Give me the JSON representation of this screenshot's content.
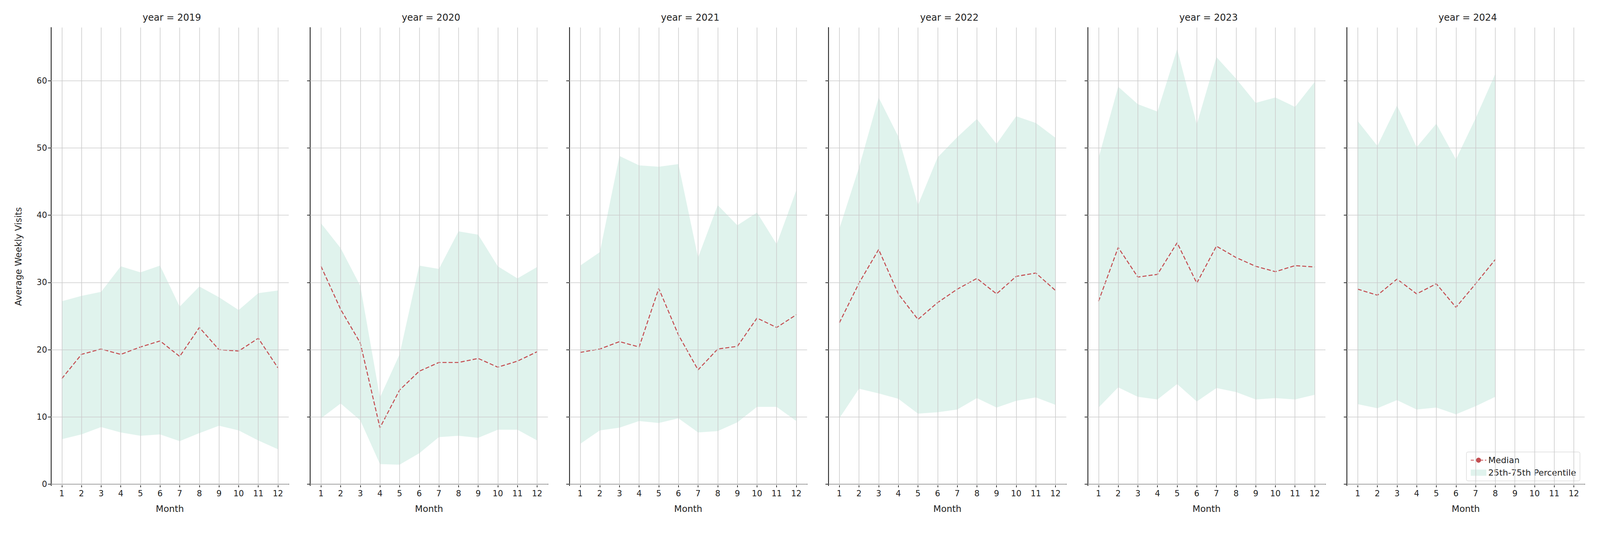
{
  "chart_data": [
    {
      "type": "line",
      "title": "year = 2019",
      "xlabel": "Month",
      "ylabel": "Average Weekly Visits",
      "x": [
        1,
        2,
        3,
        4,
        5,
        6,
        7,
        8,
        9,
        10,
        11,
        12
      ],
      "xlim": [
        0.45,
        12.55
      ],
      "xticks": [
        1,
        2,
        3,
        4,
        5,
        6,
        7,
        8,
        9,
        10,
        11,
        12
      ],
      "ylim": [
        -0.2,
        67.9
      ],
      "yticks": [
        0,
        10,
        20,
        30,
        40,
        50,
        60
      ],
      "grid": true,
      "series": [
        {
          "name": "Median",
          "color": "#c44e52",
          "line_style": "dashed",
          "values": [
            15.7,
            19.3,
            20.1,
            19.3,
            20.4,
            21.3,
            19.0,
            23.3,
            20.0,
            19.8,
            21.7,
            17.3
          ]
        },
        {
          "name": "25th-75th Percentile",
          "type": "band",
          "color": "#66c2a5",
          "lower": [
            6.7,
            7.4,
            8.5,
            7.7,
            7.2,
            7.4,
            6.4,
            7.6,
            8.7,
            8.0,
            6.5,
            5.2
          ],
          "upper": [
            27.2,
            28.0,
            28.6,
            32.4,
            31.5,
            32.5,
            26.4,
            29.4,
            27.8,
            25.9,
            28.4,
            28.8
          ]
        }
      ]
    },
    {
      "type": "line",
      "title": "year = 2020",
      "xlabel": "Month",
      "tick_labels": "x",
      "x": [
        1,
        2,
        3,
        4,
        5,
        6,
        7,
        8,
        9,
        10,
        11,
        12
      ],
      "xlim": [
        0.45,
        12.55
      ],
      "xticks": [
        1,
        2,
        3,
        4,
        5,
        6,
        7,
        8,
        9,
        10,
        11,
        12
      ],
      "ylim": [
        -0.2,
        67.9
      ],
      "yticks": [
        0,
        10,
        20,
        30,
        40,
        50,
        60
      ],
      "grid": true,
      "series": [
        {
          "name": "Median",
          "color": "#c44e52",
          "line_style": "dashed",
          "values": [
            32.4,
            26.0,
            21.0,
            8.4,
            14.0,
            16.8,
            18.1,
            18.1,
            18.7,
            17.4,
            18.3,
            19.7
          ]
        },
        {
          "name": "25th-75th Percentile",
          "type": "band",
          "color": "#66c2a5",
          "lower": [
            9.8,
            12.0,
            9.5,
            3.0,
            2.9,
            4.6,
            7.0,
            7.2,
            6.9,
            8.1,
            8.1,
            6.5
          ],
          "upper": [
            38.8,
            35.1,
            29.5,
            12.9,
            19.3,
            32.5,
            32.0,
            37.6,
            37.1,
            32.4,
            30.6,
            32.3
          ]
        }
      ]
    },
    {
      "type": "line",
      "title": "year = 2021",
      "xlabel": "Month",
      "tick_labels": "x",
      "x": [
        1,
        2,
        3,
        4,
        5,
        6,
        7,
        8,
        9,
        10,
        11,
        12
      ],
      "xlim": [
        0.45,
        12.55
      ],
      "xticks": [
        1,
        2,
        3,
        4,
        5,
        6,
        7,
        8,
        9,
        10,
        11,
        12
      ],
      "ylim": [
        -0.2,
        67.9
      ],
      "yticks": [
        0,
        10,
        20,
        30,
        40,
        50,
        60
      ],
      "grid": true,
      "series": [
        {
          "name": "Median",
          "color": "#c44e52",
          "line_style": "dashed",
          "values": [
            19.6,
            20.1,
            21.2,
            20.4,
            29.1,
            22.2,
            17.0,
            20.1,
            20.5,
            24.7,
            23.3,
            25.2
          ]
        },
        {
          "name": "25th-75th Percentile",
          "type": "band",
          "color": "#66c2a5",
          "lower": [
            6.0,
            8.0,
            8.4,
            9.4,
            9.1,
            9.8,
            7.7,
            7.9,
            9.2,
            11.5,
            11.5,
            9.4
          ],
          "upper": [
            32.5,
            34.5,
            48.8,
            47.4,
            47.2,
            47.6,
            33.7,
            41.5,
            38.5,
            40.4,
            35.7,
            43.7
          ]
        }
      ]
    },
    {
      "type": "line",
      "title": "year = 2022",
      "xlabel": "Month",
      "tick_labels": "x",
      "x": [
        1,
        2,
        3,
        4,
        5,
        6,
        7,
        8,
        9,
        10,
        11,
        12
      ],
      "xlim": [
        0.45,
        12.55
      ],
      "xticks": [
        1,
        2,
        3,
        4,
        5,
        6,
        7,
        8,
        9,
        10,
        11,
        12
      ],
      "ylim": [
        -0.2,
        67.9
      ],
      "yticks": [
        0,
        10,
        20,
        30,
        40,
        50,
        60
      ],
      "grid": true,
      "series": [
        {
          "name": "Median",
          "color": "#c44e52",
          "line_style": "dashed",
          "values": [
            24.0,
            29.9,
            34.9,
            28.3,
            24.5,
            27.0,
            29.0,
            30.6,
            28.3,
            30.9,
            31.4,
            28.8
          ]
        },
        {
          "name": "25th-75th Percentile",
          "type": "band",
          "color": "#66c2a5",
          "lower": [
            9.8,
            14.2,
            13.5,
            12.7,
            10.5,
            10.7,
            11.1,
            12.8,
            11.4,
            12.4,
            12.9,
            11.8
          ],
          "upper": [
            38.0,
            47.1,
            57.5,
            51.7,
            41.5,
            48.6,
            51.6,
            54.3,
            50.6,
            54.7,
            53.7,
            51.5
          ]
        }
      ]
    },
    {
      "type": "line",
      "title": "year = 2023",
      "xlabel": "Month",
      "tick_labels": "x",
      "x": [
        1,
        2,
        3,
        4,
        5,
        6,
        7,
        8,
        9,
        10,
        11,
        12
      ],
      "xlim": [
        0.45,
        12.55
      ],
      "xticks": [
        1,
        2,
        3,
        4,
        5,
        6,
        7,
        8,
        9,
        10,
        11,
        12
      ],
      "ylim": [
        -0.2,
        67.9
      ],
      "yticks": [
        0,
        10,
        20,
        30,
        40,
        50,
        60
      ],
      "grid": true,
      "series": [
        {
          "name": "Median",
          "color": "#c44e52",
          "line_style": "dashed",
          "values": [
            27.2,
            35.2,
            30.8,
            31.2,
            35.9,
            29.9,
            35.4,
            33.7,
            32.4,
            31.6,
            32.5,
            32.3
          ]
        },
        {
          "name": "25th-75th Percentile",
          "type": "band",
          "color": "#66c2a5",
          "lower": [
            11.4,
            14.4,
            13.0,
            12.6,
            14.9,
            12.3,
            14.3,
            13.7,
            12.6,
            12.8,
            12.6,
            13.3
          ],
          "upper": [
            48.5,
            59.1,
            56.5,
            55.4,
            64.7,
            53.5,
            63.5,
            60.3,
            56.7,
            57.5,
            56.1,
            59.8
          ]
        }
      ]
    },
    {
      "type": "line",
      "title": "year = 2024",
      "xlabel": "Month",
      "tick_labels": "x",
      "legend": "lower right",
      "x": [
        1,
        2,
        3,
        4,
        5,
        6,
        7,
        8,
        9,
        10,
        11,
        12
      ],
      "xlim": [
        0.45,
        12.55
      ],
      "xticks": [
        1,
        2,
        3,
        4,
        5,
        6,
        7,
        8,
        9,
        10,
        11,
        12
      ],
      "ylim": [
        -0.2,
        67.9
      ],
      "yticks": [
        0,
        10,
        20,
        30,
        40,
        50,
        60
      ],
      "grid": true,
      "series": [
        {
          "name": "Median",
          "color": "#c44e52",
          "line_style": "dashed",
          "values": [
            29.0,
            28.1,
            30.5,
            28.3,
            29.8,
            26.3,
            29.8,
            33.4,
            null,
            null,
            null,
            null
          ]
        },
        {
          "name": "25th-75th Percentile",
          "type": "band",
          "color": "#66c2a5",
          "lower": [
            11.9,
            11.3,
            12.5,
            11.1,
            11.4,
            10.4,
            11.6,
            13.0,
            null,
            null,
            null,
            null
          ],
          "upper": [
            54.0,
            50.3,
            56.3,
            50.1,
            53.6,
            48.3,
            54.4,
            61.0,
            null,
            null,
            null,
            null
          ]
        }
      ]
    }
  ]
}
